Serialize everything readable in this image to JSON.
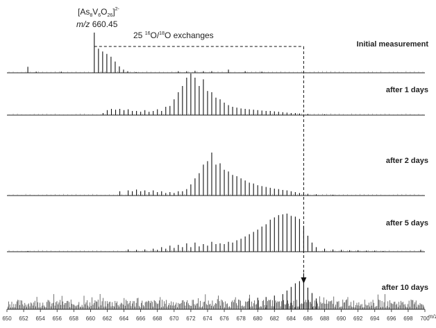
{
  "chart_data": {
    "type": "bar",
    "xlabel": "m/z",
    "xlim": [
      650,
      700
    ],
    "x_ticks": [
      650,
      652,
      654,
      656,
      658,
      660,
      662,
      664,
      666,
      668,
      670,
      672,
      674,
      676,
      678,
      680,
      682,
      684,
      686,
      688,
      690,
      692,
      694,
      696,
      698,
      700
    ],
    "annotation": {
      "formula_main": "[As",
      "formula_sub1": "8",
      "formula_mid1": "V",
      "formula_sub2": "6",
      "formula_mid2": "O",
      "formula_sub3": "26",
      "formula_close": "]",
      "formula_charge": "2-",
      "mz_prefix": "m/z",
      "mz_value": "660.45",
      "exchange_count": "25",
      "exchange_sup1": "16",
      "exchange_o1": "O/",
      "exchange_sup2": "18",
      "exchange_o2": "O exchanges",
      "start_mz": 660.45,
      "end_mz": 685.5
    },
    "series": [
      {
        "name": "Initial measurement",
        "peaks": [
          {
            "x": 652.5,
            "y": 0.15
          },
          {
            "x": 653.5,
            "y": 0.03
          },
          {
            "x": 656.5,
            "y": 0.03
          },
          {
            "x": 660.45,
            "y": 1.0
          },
          {
            "x": 660.95,
            "y": 0.6
          },
          {
            "x": 661.45,
            "y": 0.53
          },
          {
            "x": 661.95,
            "y": 0.47
          },
          {
            "x": 662.45,
            "y": 0.4
          },
          {
            "x": 662.95,
            "y": 0.28
          },
          {
            "x": 663.45,
            "y": 0.16
          },
          {
            "x": 663.95,
            "y": 0.08
          },
          {
            "x": 664.45,
            "y": 0.04
          },
          {
            "x": 665.45,
            "y": 0.02
          },
          {
            "x": 670.5,
            "y": 0.04
          },
          {
            "x": 671.5,
            "y": 0.04
          },
          {
            "x": 672.5,
            "y": 0.05
          },
          {
            "x": 673.5,
            "y": 0.04
          },
          {
            "x": 674.5,
            "y": 0.04
          },
          {
            "x": 676.5,
            "y": 0.08
          },
          {
            "x": 678.5,
            "y": 0.04
          },
          {
            "x": 680.5,
            "y": 0.03
          }
        ]
      },
      {
        "name": "after 1 days",
        "peaks": [
          {
            "x": 661.5,
            "y": 0.05
          },
          {
            "x": 662.0,
            "y": 0.12
          },
          {
            "x": 662.5,
            "y": 0.15
          },
          {
            "x": 663.0,
            "y": 0.13
          },
          {
            "x": 663.5,
            "y": 0.15
          },
          {
            "x": 664.0,
            "y": 0.12
          },
          {
            "x": 664.5,
            "y": 0.14
          },
          {
            "x": 665.0,
            "y": 0.1
          },
          {
            "x": 665.5,
            "y": 0.1
          },
          {
            "x": 666.0,
            "y": 0.08
          },
          {
            "x": 666.5,
            "y": 0.12
          },
          {
            "x": 667.0,
            "y": 0.08
          },
          {
            "x": 667.5,
            "y": 0.1
          },
          {
            "x": 668.0,
            "y": 0.14
          },
          {
            "x": 668.5,
            "y": 0.1
          },
          {
            "x": 669.0,
            "y": 0.2
          },
          {
            "x": 669.5,
            "y": 0.22
          },
          {
            "x": 670.0,
            "y": 0.38
          },
          {
            "x": 670.5,
            "y": 0.55
          },
          {
            "x": 671.0,
            "y": 0.7
          },
          {
            "x": 671.5,
            "y": 0.9
          },
          {
            "x": 672.0,
            "y": 1.0
          },
          {
            "x": 672.5,
            "y": 0.9
          },
          {
            "x": 673.0,
            "y": 0.7
          },
          {
            "x": 673.5,
            "y": 0.86
          },
          {
            "x": 674.0,
            "y": 0.58
          },
          {
            "x": 674.5,
            "y": 0.55
          },
          {
            "x": 675.0,
            "y": 0.42
          },
          {
            "x": 675.5,
            "y": 0.38
          },
          {
            "x": 676.0,
            "y": 0.3
          },
          {
            "x": 676.5,
            "y": 0.24
          },
          {
            "x": 677.0,
            "y": 0.2
          },
          {
            "x": 677.5,
            "y": 0.18
          },
          {
            "x": 678.0,
            "y": 0.16
          },
          {
            "x": 678.5,
            "y": 0.15
          },
          {
            "x": 679.0,
            "y": 0.14
          },
          {
            "x": 679.5,
            "y": 0.13
          },
          {
            "x": 680.0,
            "y": 0.12
          },
          {
            "x": 680.5,
            "y": 0.11
          },
          {
            "x": 681.0,
            "y": 0.1
          },
          {
            "x": 681.5,
            "y": 0.1
          },
          {
            "x": 682.0,
            "y": 0.09
          },
          {
            "x": 682.5,
            "y": 0.08
          },
          {
            "x": 683.0,
            "y": 0.07
          },
          {
            "x": 683.5,
            "y": 0.06
          },
          {
            "x": 684.0,
            "y": 0.05
          },
          {
            "x": 684.5,
            "y": 0.05
          },
          {
            "x": 685.0,
            "y": 0.04
          },
          {
            "x": 686.0,
            "y": 0.03
          },
          {
            "x": 688.0,
            "y": 0.02
          }
        ]
      },
      {
        "name": "after 2 days",
        "peaks": [
          {
            "x": 663.5,
            "y": 0.1
          },
          {
            "x": 664.5,
            "y": 0.12
          },
          {
            "x": 665.0,
            "y": 0.1
          },
          {
            "x": 665.5,
            "y": 0.14
          },
          {
            "x": 666.0,
            "y": 0.1
          },
          {
            "x": 666.5,
            "y": 0.12
          },
          {
            "x": 667.0,
            "y": 0.08
          },
          {
            "x": 667.5,
            "y": 0.12
          },
          {
            "x": 668.0,
            "y": 0.08
          },
          {
            "x": 668.5,
            "y": 0.1
          },
          {
            "x": 669.0,
            "y": 0.06
          },
          {
            "x": 669.5,
            "y": 0.08
          },
          {
            "x": 670.0,
            "y": 0.06
          },
          {
            "x": 670.5,
            "y": 0.1
          },
          {
            "x": 671.0,
            "y": 0.1
          },
          {
            "x": 671.5,
            "y": 0.15
          },
          {
            "x": 672.0,
            "y": 0.26
          },
          {
            "x": 672.5,
            "y": 0.4
          },
          {
            "x": 673.0,
            "y": 0.52
          },
          {
            "x": 673.5,
            "y": 0.72
          },
          {
            "x": 674.0,
            "y": 0.8
          },
          {
            "x": 674.5,
            "y": 1.0
          },
          {
            "x": 675.0,
            "y": 0.72
          },
          {
            "x": 675.5,
            "y": 0.75
          },
          {
            "x": 676.0,
            "y": 0.6
          },
          {
            "x": 676.5,
            "y": 0.56
          },
          {
            "x": 677.0,
            "y": 0.48
          },
          {
            "x": 677.5,
            "y": 0.45
          },
          {
            "x": 678.0,
            "y": 0.4
          },
          {
            "x": 678.5,
            "y": 0.35
          },
          {
            "x": 679.0,
            "y": 0.3
          },
          {
            "x": 679.5,
            "y": 0.28
          },
          {
            "x": 680.0,
            "y": 0.24
          },
          {
            "x": 680.5,
            "y": 0.22
          },
          {
            "x": 681.0,
            "y": 0.2
          },
          {
            "x": 681.5,
            "y": 0.18
          },
          {
            "x": 682.0,
            "y": 0.16
          },
          {
            "x": 682.5,
            "y": 0.15
          },
          {
            "x": 683.0,
            "y": 0.13
          },
          {
            "x": 683.5,
            "y": 0.12
          },
          {
            "x": 684.0,
            "y": 0.1
          },
          {
            "x": 684.5,
            "y": 0.08
          },
          {
            "x": 685.0,
            "y": 0.06
          },
          {
            "x": 685.5,
            "y": 0.05
          },
          {
            "x": 686.0,
            "y": 0.04
          },
          {
            "x": 687.0,
            "y": 0.03
          },
          {
            "x": 689.0,
            "y": 0.02
          }
        ]
      },
      {
        "name": "after 5 days",
        "peaks": [
          {
            "x": 652.5,
            "y": 0.02
          },
          {
            "x": 664.5,
            "y": 0.06
          },
          {
            "x": 665.5,
            "y": 0.05
          },
          {
            "x": 666.5,
            "y": 0.06
          },
          {
            "x": 667.5,
            "y": 0.08
          },
          {
            "x": 668.0,
            "y": 0.05
          },
          {
            "x": 668.5,
            "y": 0.12
          },
          {
            "x": 669.0,
            "y": 0.08
          },
          {
            "x": 669.5,
            "y": 0.16
          },
          {
            "x": 670.0,
            "y": 0.1
          },
          {
            "x": 670.5,
            "y": 0.18
          },
          {
            "x": 671.0,
            "y": 0.12
          },
          {
            "x": 671.5,
            "y": 0.22
          },
          {
            "x": 672.0,
            "y": 0.12
          },
          {
            "x": 672.5,
            "y": 0.24
          },
          {
            "x": 673.0,
            "y": 0.14
          },
          {
            "x": 673.5,
            "y": 0.2
          },
          {
            "x": 674.0,
            "y": 0.16
          },
          {
            "x": 674.5,
            "y": 0.26
          },
          {
            "x": 675.0,
            "y": 0.2
          },
          {
            "x": 675.5,
            "y": 0.22
          },
          {
            "x": 676.0,
            "y": 0.2
          },
          {
            "x": 676.5,
            "y": 0.26
          },
          {
            "x": 677.0,
            "y": 0.24
          },
          {
            "x": 677.5,
            "y": 0.3
          },
          {
            "x": 678.0,
            "y": 0.34
          },
          {
            "x": 678.5,
            "y": 0.4
          },
          {
            "x": 679.0,
            "y": 0.46
          },
          {
            "x": 679.5,
            "y": 0.52
          },
          {
            "x": 680.0,
            "y": 0.58
          },
          {
            "x": 680.5,
            "y": 0.66
          },
          {
            "x": 681.0,
            "y": 0.72
          },
          {
            "x": 681.5,
            "y": 0.84
          },
          {
            "x": 682.0,
            "y": 0.9
          },
          {
            "x": 682.5,
            "y": 0.96
          },
          {
            "x": 683.0,
            "y": 0.98
          },
          {
            "x": 683.5,
            "y": 1.0
          },
          {
            "x": 684.0,
            "y": 0.94
          },
          {
            "x": 684.5,
            "y": 0.92
          },
          {
            "x": 685.0,
            "y": 0.86
          },
          {
            "x": 685.5,
            "y": 0.68
          },
          {
            "x": 686.0,
            "y": 0.42
          },
          {
            "x": 686.5,
            "y": 0.24
          },
          {
            "x": 687.0,
            "y": 0.12
          },
          {
            "x": 688.0,
            "y": 0.08
          },
          {
            "x": 689.0,
            "y": 0.06
          },
          {
            "x": 690.0,
            "y": 0.05
          },
          {
            "x": 691.0,
            "y": 0.04
          },
          {
            "x": 692.0,
            "y": 0.04
          },
          {
            "x": 693.0,
            "y": 0.03
          },
          {
            "x": 694.0,
            "y": 0.03
          },
          {
            "x": 695.0,
            "y": 0.02
          },
          {
            "x": 699.5,
            "y": 0.05
          }
        ]
      },
      {
        "name": "after 10 days",
        "noise_level": 0.22,
        "peaks": [
          {
            "x": 679.0,
            "y": 0.3
          },
          {
            "x": 680.0,
            "y": 0.32
          },
          {
            "x": 681.0,
            "y": 0.34
          },
          {
            "x": 682.0,
            "y": 0.38
          },
          {
            "x": 683.0,
            "y": 0.42
          },
          {
            "x": 683.5,
            "y": 0.52
          },
          {
            "x": 684.0,
            "y": 0.62
          },
          {
            "x": 684.5,
            "y": 0.72
          },
          {
            "x": 685.0,
            "y": 0.78
          },
          {
            "x": 685.5,
            "y": 1.0
          },
          {
            "x": 686.0,
            "y": 0.6
          },
          {
            "x": 686.5,
            "y": 0.45
          },
          {
            "x": 687.0,
            "y": 0.3
          }
        ]
      }
    ]
  }
}
